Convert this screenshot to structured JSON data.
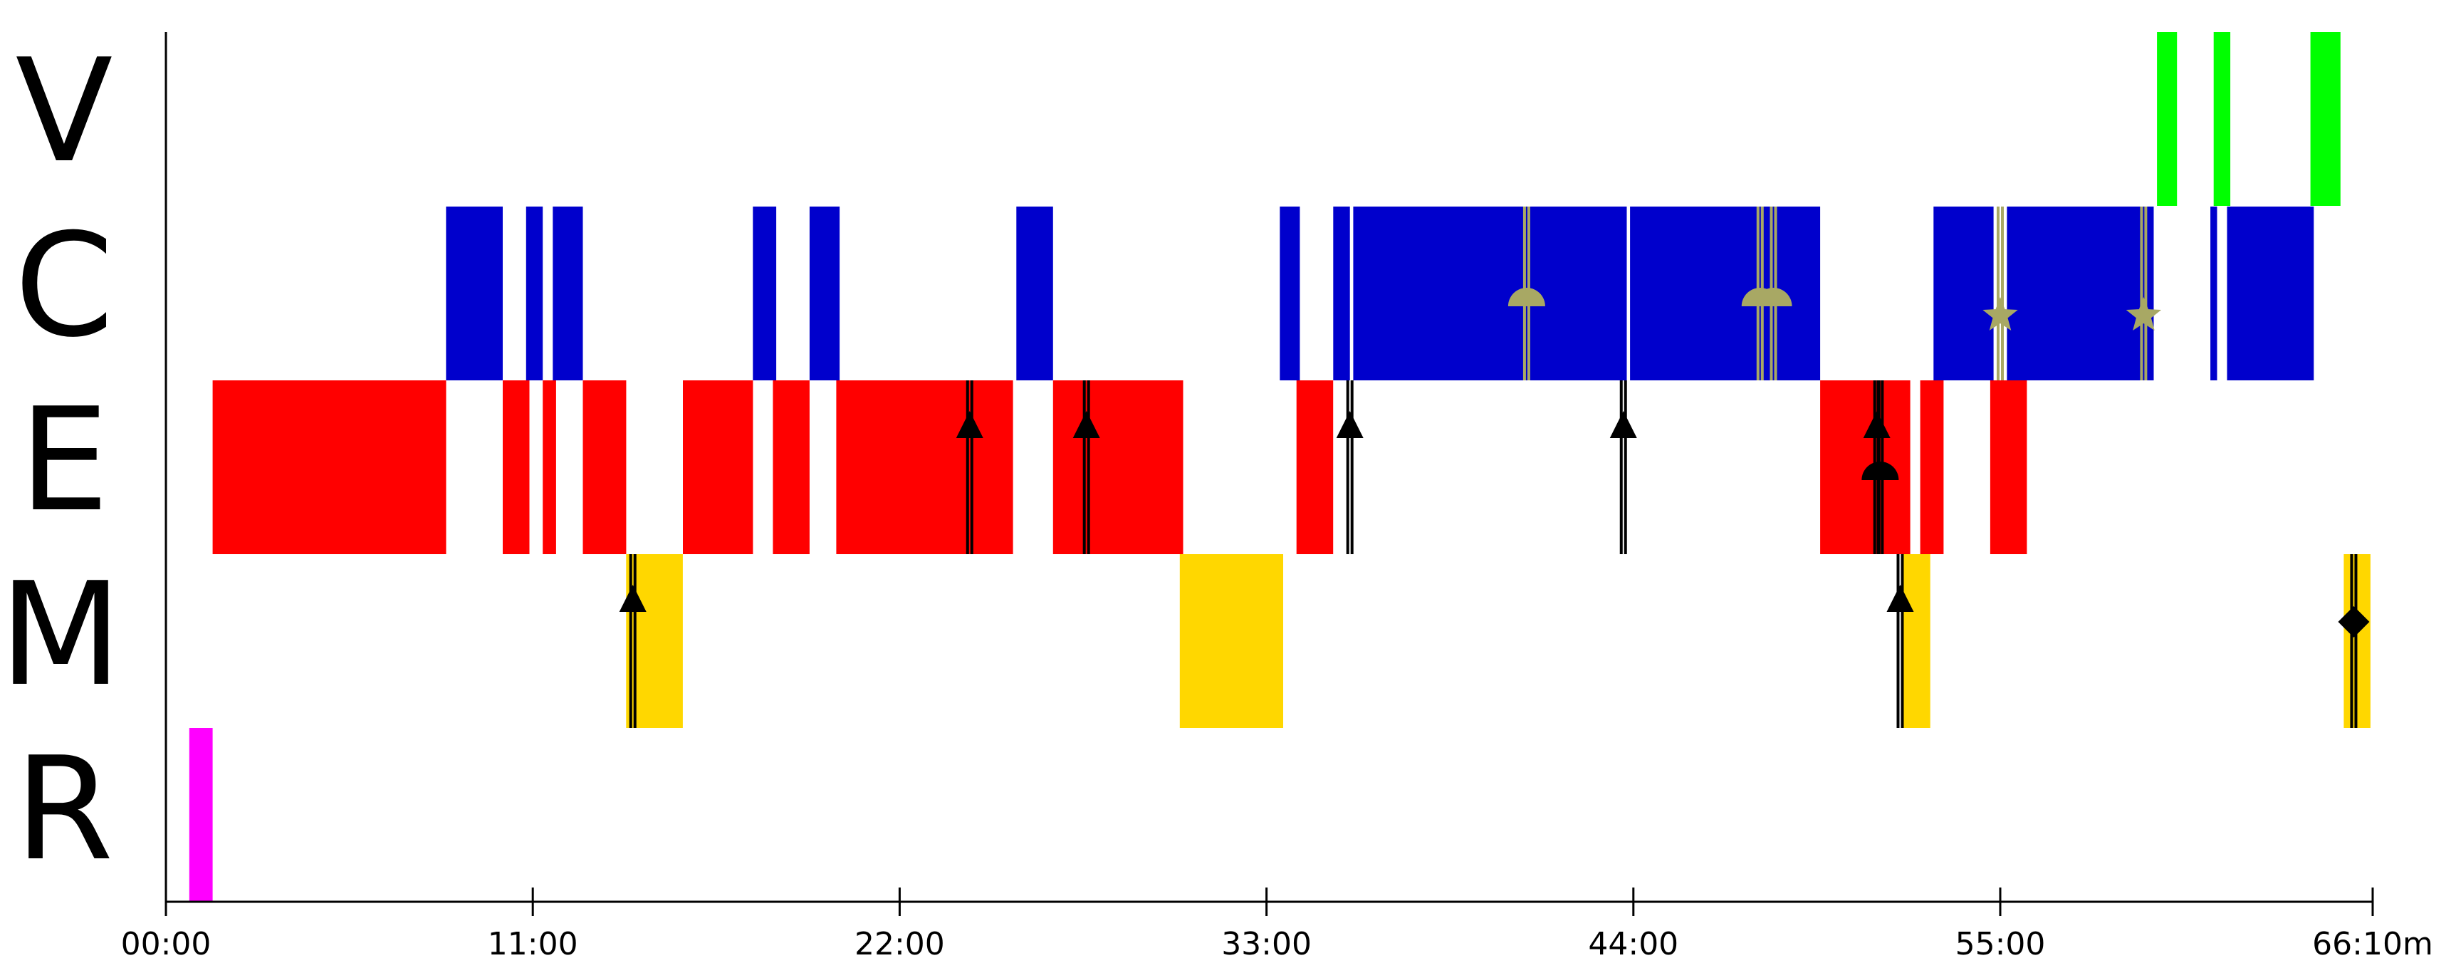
{
  "chart_data": {
    "type": "timeline",
    "rows": [
      "V",
      "C",
      "E",
      "M",
      "R"
    ],
    "x_unit": "minutes",
    "xlim": [
      0,
      66.1667
    ],
    "x_ticks": [
      {
        "value": 0,
        "label": "00:00"
      },
      {
        "value": 11,
        "label": "11:00"
      },
      {
        "value": 22,
        "label": "22:00"
      },
      {
        "value": 33,
        "label": "33:00"
      },
      {
        "value": 44,
        "label": "44:00"
      },
      {
        "value": 55,
        "label": "55:00"
      },
      {
        "value": 66.1667,
        "label": "66:10m"
      }
    ],
    "colors": {
      "V": "#00ff00",
      "C": "#0000cc",
      "E": "#ff0000",
      "M": "#ffd700",
      "R": "#ff00ff",
      "marker_dark": "#000000",
      "marker_olive": "#a8a864"
    },
    "segments": {
      "V": [
        [
          59.7,
          60.3
        ],
        [
          61.4,
          61.9
        ],
        [
          64.3,
          65.2
        ]
      ],
      "C": [
        [
          8.4,
          10.1
        ],
        [
          10.8,
          11.3
        ],
        [
          11.6,
          12.5
        ],
        [
          17.6,
          18.3
        ],
        [
          19.3,
          20.2
        ],
        [
          25.5,
          26.6
        ],
        [
          33.4,
          34.0
        ],
        [
          35.0,
          35.5
        ],
        [
          35.6,
          43.8
        ],
        [
          43.9,
          49.6
        ],
        [
          53.0,
          54.8
        ],
        [
          55.2,
          59.6
        ],
        [
          61.3,
          61.5
        ],
        [
          61.8,
          64.4
        ]
      ],
      "E": [
        [
          1.4,
          8.4
        ],
        [
          10.1,
          10.9
        ],
        [
          11.3,
          11.7
        ],
        [
          12.5,
          13.8
        ],
        [
          15.5,
          17.6
        ],
        [
          18.2,
          19.3
        ],
        [
          20.1,
          25.4
        ],
        [
          26.6,
          30.5
        ],
        [
          33.9,
          35.0
        ],
        [
          49.6,
          52.3
        ],
        [
          52.6,
          53.3
        ],
        [
          54.7,
          55.8
        ]
      ],
      "M": [
        [
          13.8,
          15.5
        ],
        [
          30.4,
          33.5
        ],
        [
          52.1,
          52.9
        ],
        [
          65.3,
          66.1
        ]
      ],
      "R": [
        [
          0.7,
          1.4
        ]
      ]
    },
    "markers": [
      {
        "row": "M",
        "x": 14.0,
        "shape": "triangle",
        "color": "dark"
      },
      {
        "row": "E",
        "x": 24.1,
        "shape": "triangle",
        "color": "dark"
      },
      {
        "row": "E",
        "x": 27.6,
        "shape": "triangle",
        "color": "dark"
      },
      {
        "row": "E",
        "x": 35.5,
        "shape": "triangle",
        "color": "dark"
      },
      {
        "row": "E",
        "x": 43.7,
        "shape": "triangle",
        "color": "dark"
      },
      {
        "row": "E",
        "x": 51.3,
        "shape": "triangle",
        "color": "dark"
      },
      {
        "row": "E",
        "x": 51.4,
        "shape": "half-circle",
        "color": "dark"
      },
      {
        "row": "M",
        "x": 52.0,
        "shape": "triangle",
        "color": "dark"
      },
      {
        "row": "C",
        "x": 40.8,
        "shape": "half-circle",
        "color": "olive"
      },
      {
        "row": "C",
        "x": 47.8,
        "shape": "half-circle",
        "color": "olive"
      },
      {
        "row": "C",
        "x": 48.2,
        "shape": "half-circle",
        "color": "olive"
      },
      {
        "row": "C",
        "x": 55.0,
        "shape": "star",
        "color": "olive"
      },
      {
        "row": "C",
        "x": 59.3,
        "shape": "star",
        "color": "olive"
      },
      {
        "row": "M",
        "x": 65.6,
        "shape": "diamond",
        "color": "dark"
      }
    ],
    "grid": false,
    "legend": "none"
  }
}
